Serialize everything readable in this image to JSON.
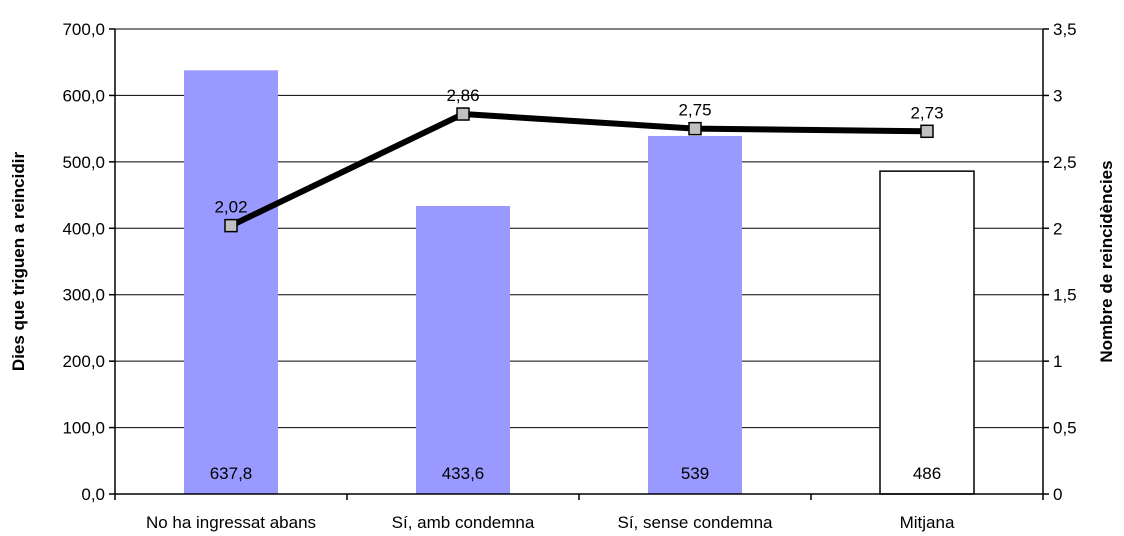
{
  "chart_data": {
    "type": "bar",
    "categories": [
      "No ha ingressat abans",
      "Sí, amb condemna",
      "Sí, sense condemna",
      "Mitjana"
    ],
    "series": [
      {
        "type": "bar",
        "axis": "left",
        "values": [
          637.8,
          433.6,
          539,
          486
        ],
        "value_labels": [
          "637,8",
          "433,6",
          "539",
          "486"
        ],
        "colors": [
          "#9999ff",
          "#9999ff",
          "#9999ff",
          "#ffffff"
        ]
      },
      {
        "type": "line",
        "axis": "right",
        "values": [
          2.02,
          2.86,
          2.75,
          2.73
        ],
        "value_labels": [
          "2,02",
          "2,86",
          "2,75",
          "2,73"
        ],
        "color": "#000000",
        "marker_color": "#c0c0c0"
      }
    ],
    "title": "",
    "ylabel": "Dies que triguen a reincidir",
    "y2label": "Nombre de reincidències",
    "ylim": [
      0,
      700
    ],
    "y2lim": [
      0,
      3.5
    ],
    "yticks": [
      "0,0",
      "100,0",
      "200,0",
      "300,0",
      "400,0",
      "500,0",
      "600,0",
      "700,0"
    ],
    "y2ticks": [
      "0",
      "0,5",
      "1",
      "1,5",
      "2",
      "2,5",
      "3",
      "3,5"
    ],
    "grid": true
  }
}
